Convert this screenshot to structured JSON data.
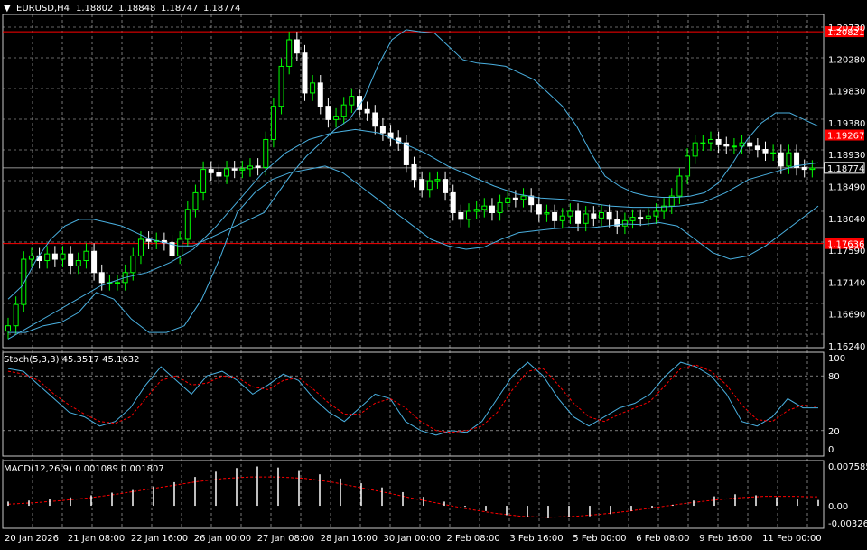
{
  "header": {
    "symbol": "EURUSD,H4",
    "open": "1.18802",
    "high": "1.18848",
    "low": "1.18747",
    "close": "1.18774"
  },
  "colors": {
    "background": "#000000",
    "grid": "#c8c8c8",
    "bull_candle": "#ffffff",
    "bear_candle": "#ffffff",
    "candle_body_bear": "#ffffff",
    "candle_body_bull": "#000000",
    "ma_line": "#00ff00",
    "bollinger": "#4ab0e0",
    "level_line": "#ff0000",
    "current_price_bg": "#000000",
    "level_label_bg": "#ff0000",
    "stoch_main": "#4ab0e0",
    "stoch_signal": "#ff0000",
    "macd_hist": "#ffffff",
    "macd_signal": "#ff0000"
  },
  "price_axis": [
    "1.20730",
    "1.20280",
    "1.19830",
    "1.19380",
    "1.18930",
    "1.18490",
    "1.18040",
    "1.17590",
    "1.17140",
    "1.16690",
    "1.16240"
  ],
  "level_labels": [
    "1.20821",
    "1.19267",
    "1.17636"
  ],
  "current_price": "1.18774",
  "time_axis": [
    "20 Jan 2026",
    "21 Jan 08:00",
    "22 Jan 16:00",
    "26 Jan 00:00",
    "27 Jan 08:00",
    "28 Jan 16:00",
    "30 Jan 00:00",
    "2 Feb 08:00",
    "3 Feb 16:00",
    "5 Feb 00:00",
    "6 Feb 08:00",
    "9 Feb 16:00",
    "11 Feb 00:00"
  ],
  "stoch": {
    "title": "Stoch(5,3,3) 45.3517 45.1632",
    "axis": [
      "100",
      "80",
      "20",
      "0"
    ]
  },
  "macd": {
    "title": "MACD(12,26,9) 0.001089 0.001807",
    "axis": [
      "0.007585",
      "0.00",
      "-0.003264"
    ]
  },
  "chart_data": {
    "type": "candlestick",
    "ylim": [
      1.1607,
      1.2108
    ],
    "levels": [
      1.20821,
      1.19267,
      1.17636
    ],
    "current": 1.18774,
    "close": [
      1.164,
      1.1672,
      1.174,
      1.1745,
      1.1738,
      1.1748,
      1.174,
      1.1748,
      1.173,
      1.1738,
      1.1752,
      1.172,
      1.1705,
      1.1705,
      1.1705,
      1.172,
      1.1745,
      1.177,
      1.1767,
      1.1768,
      1.1765,
      1.1745,
      1.177,
      1.1815,
      1.184,
      1.1875,
      1.187,
      1.1865,
      1.1876,
      1.1874,
      1.1876,
      1.188,
      1.1878,
      1.192,
      1.197,
      1.203,
      1.207,
      1.205,
      1.199,
      1.2005,
      1.197,
      1.195,
      1.1955,
      1.1972,
      1.1985,
      1.1965,
      1.196,
      1.194,
      1.193,
      1.1922,
      1.1915,
      1.1882,
      1.186,
      1.1845,
      1.1858,
      1.186,
      1.184,
      1.181,
      1.18,
      1.1812,
      1.1815,
      1.182,
      1.181,
      1.1825,
      1.1832,
      1.183,
      1.1835,
      1.1822,
      1.1808,
      1.181,
      1.1798,
      1.1805,
      1.1812,
      1.1794,
      1.1808,
      1.1802,
      1.181,
      1.18,
      1.179,
      1.1798,
      1.1803,
      1.1802,
      1.1805,
      1.1812,
      1.182,
      1.1835,
      1.1865,
      1.1895,
      1.1915,
      1.1915,
      1.192,
      1.1912,
      1.191,
      1.191,
      1.1915,
      1.191,
      1.1905,
      1.19,
      1.19,
      1.188,
      1.19,
      1.1878,
      1.1875,
      1.1877
    ],
    "bollinger_upper": [
      1.168,
      1.17,
      1.174,
      1.177,
      1.179,
      1.18,
      1.18,
      1.1795,
      1.179,
      1.178,
      1.177,
      1.1765,
      1.176,
      1.176,
      1.177,
      1.178,
      1.179,
      1.18,
      1.181,
      1.184,
      1.187,
      1.1895,
      1.1915,
      1.1935,
      1.195,
      1.198,
      1.203,
      1.207,
      1.2085,
      1.2082,
      1.208,
      1.206,
      1.204,
      1.2035,
      1.2033,
      1.203,
      1.202,
      1.201,
      1.199,
      1.197,
      1.194,
      1.19,
      1.1865,
      1.185,
      1.184,
      1.1835,
      1.1833,
      1.1833,
      1.1835,
      1.184,
      1.1855,
      1.1885,
      1.192,
      1.1945,
      1.196,
      1.196,
      1.195,
      1.194
    ],
    "bollinger_lower": [
      1.163,
      1.163,
      1.164,
      1.1645,
      1.166,
      1.169,
      1.168,
      1.165,
      1.163,
      1.163,
      1.164,
      1.168,
      1.174,
      1.181,
      1.184,
      1.186,
      1.187,
      1.1875,
      1.188,
      1.187,
      1.185,
      1.183,
      1.181,
      1.179,
      1.177,
      1.176,
      1.1755,
      1.1758,
      1.177,
      1.178,
      1.1783,
      1.1786,
      1.1788,
      1.1787,
      1.179,
      1.1793,
      1.1792,
      1.1795,
      1.179,
      1.177,
      1.175,
      1.174,
      1.1745,
      1.176,
      1.178,
      1.18,
      1.182
    ],
    "ma": [
      1.162,
      1.164,
      1.166,
      1.168,
      1.17,
      1.1712,
      1.172,
      1.1735,
      1.1755,
      1.179,
      1.183,
      1.187,
      1.19,
      1.192,
      1.193,
      1.1935,
      1.193,
      1.1915,
      1.19,
      1.188,
      1.1865,
      1.185,
      1.1838,
      1.1832,
      1.183,
      1.1825,
      1.182,
      1.1818,
      1.1818,
      1.182,
      1.1825,
      1.184,
      1.186,
      1.187,
      1.188,
      1.1885
    ],
    "stoch_main": [
      88,
      85,
      70,
      55,
      40,
      35,
      25,
      30,
      45,
      70,
      90,
      75,
      60,
      80,
      85,
      75,
      60,
      70,
      82,
      75,
      55,
      40,
      30,
      45,
      60,
      55,
      30,
      20,
      15,
      20,
      18,
      30,
      55,
      80,
      95,
      80,
      55,
      35,
      25,
      35,
      45,
      50,
      60,
      80,
      95,
      90,
      80,
      60,
      30,
      25,
      35,
      55,
      45,
      45
    ],
    "stoch_signal": [
      85,
      82,
      75,
      60,
      48,
      38,
      30,
      28,
      35,
      55,
      75,
      80,
      70,
      72,
      80,
      78,
      68,
      65,
      75,
      78,
      65,
      50,
      38,
      38,
      50,
      55,
      45,
      30,
      20,
      18,
      20,
      25,
      40,
      65,
      85,
      88,
      70,
      50,
      35,
      30,
      38,
      45,
      52,
      70,
      88,
      92,
      85,
      70,
      48,
      32,
      30,
      42,
      48,
      46
    ],
    "macd_hist": [
      0.0008,
      0.001,
      0.0013,
      0.0016,
      0.002,
      0.0025,
      0.003,
      0.0037,
      0.0045,
      0.0055,
      0.0065,
      0.0072,
      0.0075,
      0.0073,
      0.0068,
      0.006,
      0.0052,
      0.0043,
      0.0035,
      0.0026,
      0.0017,
      0.0008,
      -0.0002,
      -0.001,
      -0.0018,
      -0.0022,
      -0.0024,
      -0.0022,
      -0.002,
      -0.0016,
      -0.001,
      -0.0004,
      0.0002,
      0.001,
      0.0018,
      0.0022,
      0.002,
      0.0016,
      0.0012,
      0.0011
    ],
    "macd_signal": [
      0.0003,
      0.0006,
      0.001,
      0.0015,
      0.0022,
      0.003,
      0.0038,
      0.0046,
      0.0052,
      0.0055,
      0.0055,
      0.0052,
      0.0045,
      0.0035,
      0.0025,
      0.0014,
      0.0004,
      -0.0006,
      -0.0014,
      -0.002,
      -0.0022,
      -0.002,
      -0.0016,
      -0.001,
      -0.0003,
      0.0004,
      0.001,
      0.0015,
      0.0018,
      0.0018,
      0.0017
    ]
  }
}
